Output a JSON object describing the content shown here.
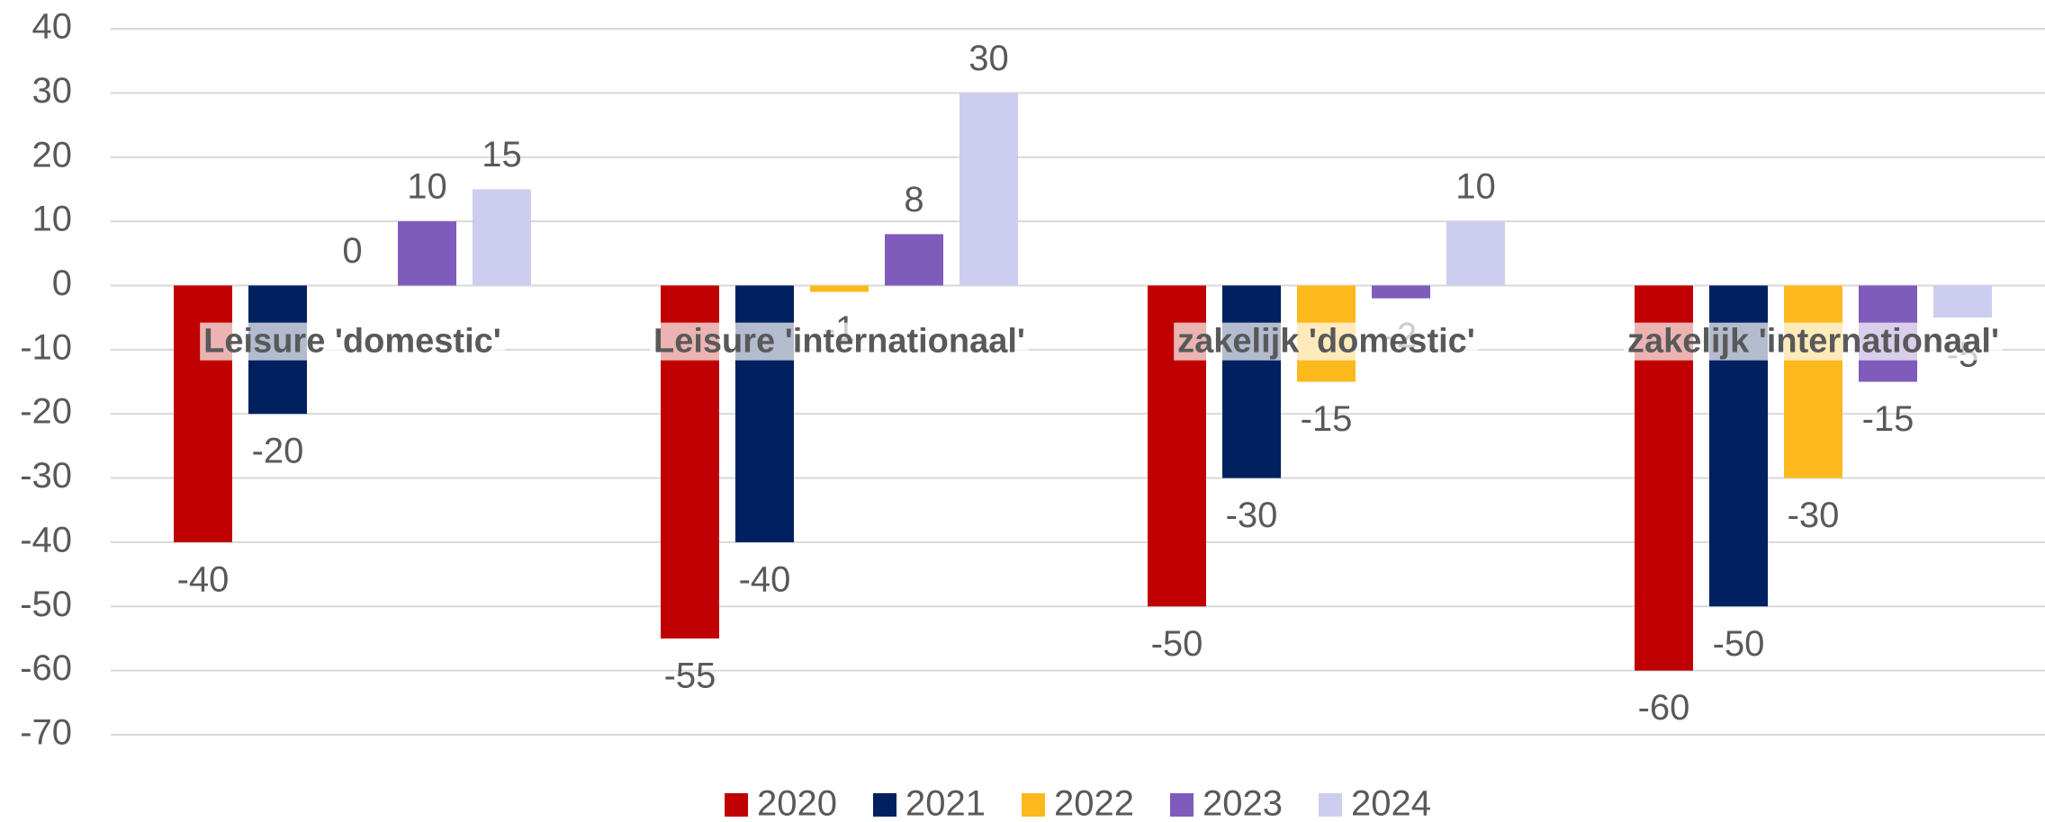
{
  "chart_data": {
    "type": "bar",
    "categories": [
      "Leisure 'domestic'",
      "Leisure 'internationaal'",
      "zakelijk 'domestic'",
      "zakelijk 'internationaal'"
    ],
    "series": [
      {
        "name": "2020",
        "color": "#c00000",
        "values": [
          -40,
          -55,
          -50,
          -60
        ]
      },
      {
        "name": "2021",
        "color": "#002060",
        "values": [
          -20,
          -40,
          -30,
          -50
        ]
      },
      {
        "name": "2022",
        "color": "#fdb91b",
        "values": [
          0,
          -1,
          -15,
          -30
        ]
      },
      {
        "name": "2023",
        "color": "#7f5bbb",
        "values": [
          10,
          8,
          -2,
          -15
        ]
      },
      {
        "name": "2024",
        "color": "#cdcdef",
        "values": [
          15,
          30,
          10,
          -5
        ]
      }
    ],
    "ylim": [
      -70,
      40
    ],
    "yticks": [
      -70,
      -60,
      -50,
      -40,
      -30,
      -20,
      -10,
      0,
      10,
      20,
      30,
      40
    ],
    "grid": true,
    "legend": "bottom"
  }
}
